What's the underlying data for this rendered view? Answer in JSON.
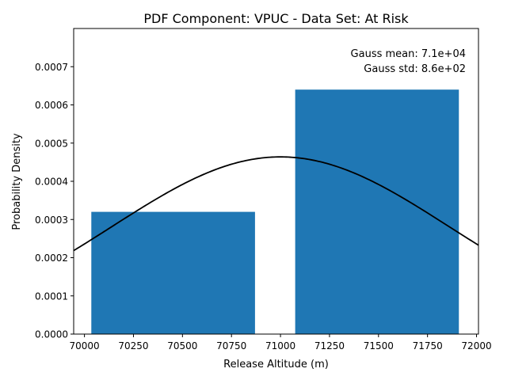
{
  "chart_data": {
    "type": "bar",
    "title": "PDF Component: VPUC - Data Set: At Risk",
    "xlabel": "Release Altitude (m)",
    "ylabel": "Probability Density",
    "xlim": [
      69945,
      72010
    ],
    "ylim": [
      0,
      0.0008
    ],
    "xticks": [
      {
        "value": 70000,
        "label": "70000"
      },
      {
        "value": 70250,
        "label": "70250"
      },
      {
        "value": 70500,
        "label": "70500"
      },
      {
        "value": 70750,
        "label": "70750"
      },
      {
        "value": 71000,
        "label": "71000"
      },
      {
        "value": 71250,
        "label": "71250"
      },
      {
        "value": 71500,
        "label": "71500"
      },
      {
        "value": 71750,
        "label": "71750"
      },
      {
        "value": 72000,
        "label": "72000"
      }
    ],
    "yticks": [
      {
        "value": 0,
        "label": "0.0000"
      },
      {
        "value": 0.0001,
        "label": "0.0001"
      },
      {
        "value": 0.0002,
        "label": "0.0002"
      },
      {
        "value": 0.0003,
        "label": "0.0003"
      },
      {
        "value": 0.0004,
        "label": "0.0004"
      },
      {
        "value": 0.0005,
        "label": "0.0005"
      },
      {
        "value": 0.0006,
        "label": "0.0006"
      },
      {
        "value": 0.0007,
        "label": "0.0007"
      }
    ],
    "bars": [
      {
        "x_start": 70035,
        "x_end": 70870,
        "value": 0.00032
      },
      {
        "x_start": 71075,
        "x_end": 71910,
        "value": 0.00064
      }
    ],
    "gauss_curve": {
      "mean": 71000,
      "std": 860,
      "x_range": [
        69945,
        72010
      ]
    },
    "annotations": [
      "Gauss mean: 7.1e+04",
      "Gauss std: 8.6e+02"
    ],
    "grid": false,
    "colors": {
      "bar": "#1f77b4",
      "curve": "#000000",
      "axis": "#000000"
    }
  }
}
